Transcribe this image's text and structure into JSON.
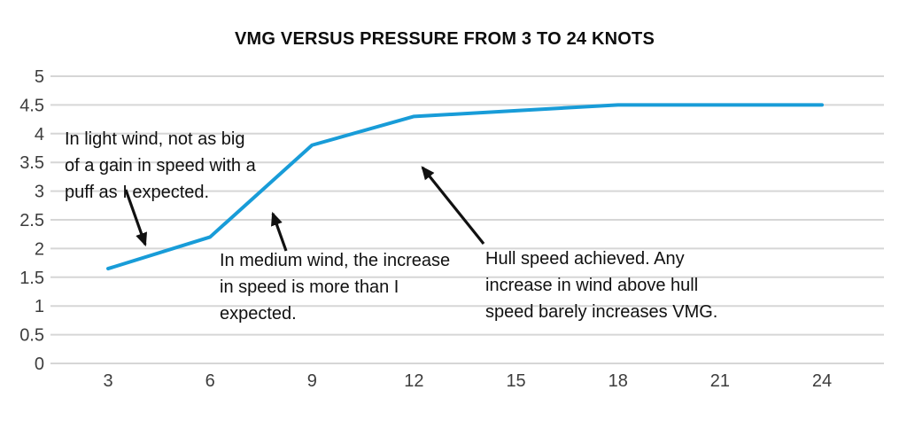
{
  "title": "VMG VERSUS PRESSURE FROM 3 TO 24 KNOTS",
  "colors": {
    "line": "#189cd8",
    "grid": "#d6d6d6",
    "tick_text": "#3d3d3d",
    "annotation_text": "#111111",
    "arrow": "#111111",
    "background": "#ffffff"
  },
  "chart_data": {
    "type": "line",
    "title": "VMG VERSUS PRESSURE FROM 3 TO 24 KNOTS",
    "x": [
      3,
      6,
      9,
      12,
      15,
      18,
      21,
      24
    ],
    "series": [
      {
        "name": "VMG",
        "values": [
          1.65,
          2.2,
          3.8,
          4.3,
          4.4,
          4.5,
          4.5,
          4.5
        ]
      }
    ],
    "xlabel": "",
    "ylabel": "",
    "xlim": [
      3,
      24
    ],
    "ylim": [
      0,
      5
    ],
    "xtick_labels": [
      "3",
      "6",
      "9",
      "12",
      "15",
      "18",
      "21",
      "24"
    ],
    "ytick_labels": [
      "0",
      "0.5",
      "1",
      "1.5",
      "2",
      "2.5",
      "3",
      "3.5",
      "4",
      "4.5",
      "5"
    ],
    "grid": "horizontal",
    "legend": "none"
  },
  "annotations": [
    {
      "text": "In light wind, not as big\nof a gain in speed with a\npuff as I expected.",
      "arrow": {
        "from": [
          142,
          214
        ],
        "to": [
          164,
          276
        ]
      }
    },
    {
      "text": "In medium wind, the increase\nin speed is more than I\nexpected.",
      "arrow": {
        "from": [
          323,
          283
        ],
        "to": [
          308,
          241
        ]
      }
    },
    {
      "text": "Hull speed achieved. Any\nincrease in wind above hull\nspeed barely increases VMG.",
      "arrow": {
        "from": [
          546,
          275
        ],
        "to": [
          477,
          189
        ]
      }
    }
  ]
}
